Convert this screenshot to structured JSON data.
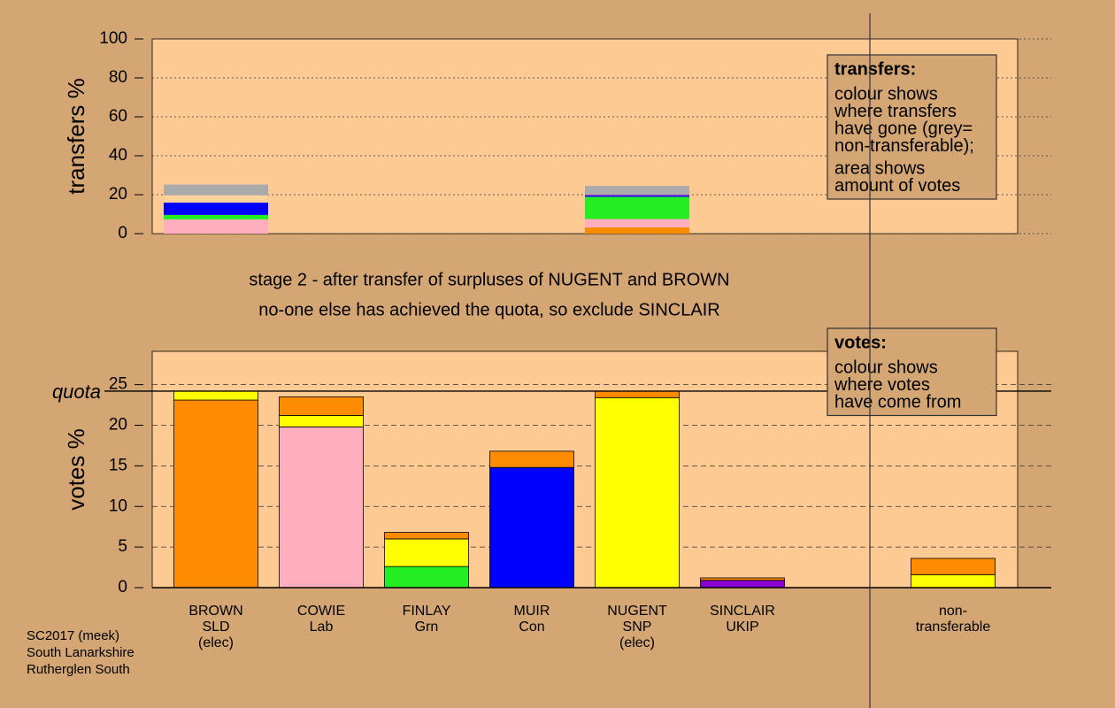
{
  "chart_data": [
    {
      "type": "stacked-bar",
      "ylabel": "transfers %",
      "ylim": [
        0,
        100
      ],
      "yticks": [
        0,
        20,
        40,
        60,
        80,
        100
      ],
      "grid": true,
      "series": [
        {
          "color": "#ff8c00",
          "values": [
            0,
            0,
            0,
            0,
            3.2,
            0,
            0,
            0
          ]
        },
        {
          "color": "#ffaec0",
          "values": [
            7.3,
            0,
            0,
            0,
            4.3,
            0,
            0,
            0
          ]
        },
        {
          "color": "#22ee22",
          "values": [
            2.3,
            0,
            0,
            0,
            11.4,
            0,
            0,
            0
          ]
        },
        {
          "color": "#0000ff",
          "values": [
            6.4,
            0,
            0,
            0,
            0.6,
            0,
            0,
            0
          ]
        },
        {
          "color": "#8a00d4",
          "values": [
            0,
            0,
            0,
            0,
            0.4,
            0,
            0,
            0
          ]
        },
        {
          "color": "#ffd29c",
          "values": [
            3.7,
            0,
            0,
            0,
            0,
            0,
            0,
            0
          ]
        },
        {
          "color": "#aaaaaa",
          "values": [
            5.5,
            0,
            0,
            0,
            4.6,
            0,
            0,
            0
          ]
        }
      ],
      "box": {
        "title": "transfers:",
        "paragraphs": [
          [
            "colour shows",
            "where transfers",
            "have gone (grey=",
            "non-transferable);"
          ],
          [
            "area shows",
            "amount of votes"
          ]
        ]
      }
    },
    {
      "type": "stacked-bar",
      "title": [
        "stage 2 - after transfer of surpluses of NUGENT and BROWN",
        "no-one else has achieved the quota, so exclude SINCLAIR"
      ],
      "ylabel": "votes %",
      "ylim": [
        0,
        29.1
      ],
      "yticks": [
        0,
        5,
        10,
        15,
        20,
        25
      ],
      "grid": true,
      "quota": {
        "value": 24.2,
        "label": "quota"
      },
      "categories": [
        [
          "BROWN",
          "SLD",
          "(elec)"
        ],
        [
          "COWIE",
          "Lab"
        ],
        [
          "FINLAY",
          "Grn"
        ],
        [
          "MUIR",
          "Con"
        ],
        [
          "NUGENT",
          "SNP",
          "(elec)"
        ],
        [
          "SINCLAIR",
          "UKIP"
        ],
        null,
        [
          "non-",
          "transferable"
        ]
      ],
      "series": [
        {
          "colors": [
            "#ff8c00",
            "#ffaec0",
            "#22ee22",
            "#0000ff",
            "#ffff00",
            "#8a00d4",
            null,
            "#ffff00"
          ],
          "values": [
            23.1,
            19.8,
            2.6,
            14.8,
            23.4,
            0.9,
            null,
            0
          ]
        },
        {
          "color": "#ffff00",
          "values": [
            1.1,
            1.4,
            3.4,
            0,
            0,
            0,
            null,
            1.6
          ]
        },
        {
          "color": "#ff8c00",
          "values": [
            0,
            2.3,
            0.8,
            2.0,
            0.8,
            0.3,
            null,
            2.0
          ]
        }
      ],
      "box": {
        "title": "votes:",
        "paragraphs": [
          [
            "colour shows",
            "where votes",
            "have come from"
          ]
        ]
      }
    }
  ],
  "footer": [
    "SC2017 (meek)",
    "South Lanarkshire",
    "Rutherglen South"
  ]
}
